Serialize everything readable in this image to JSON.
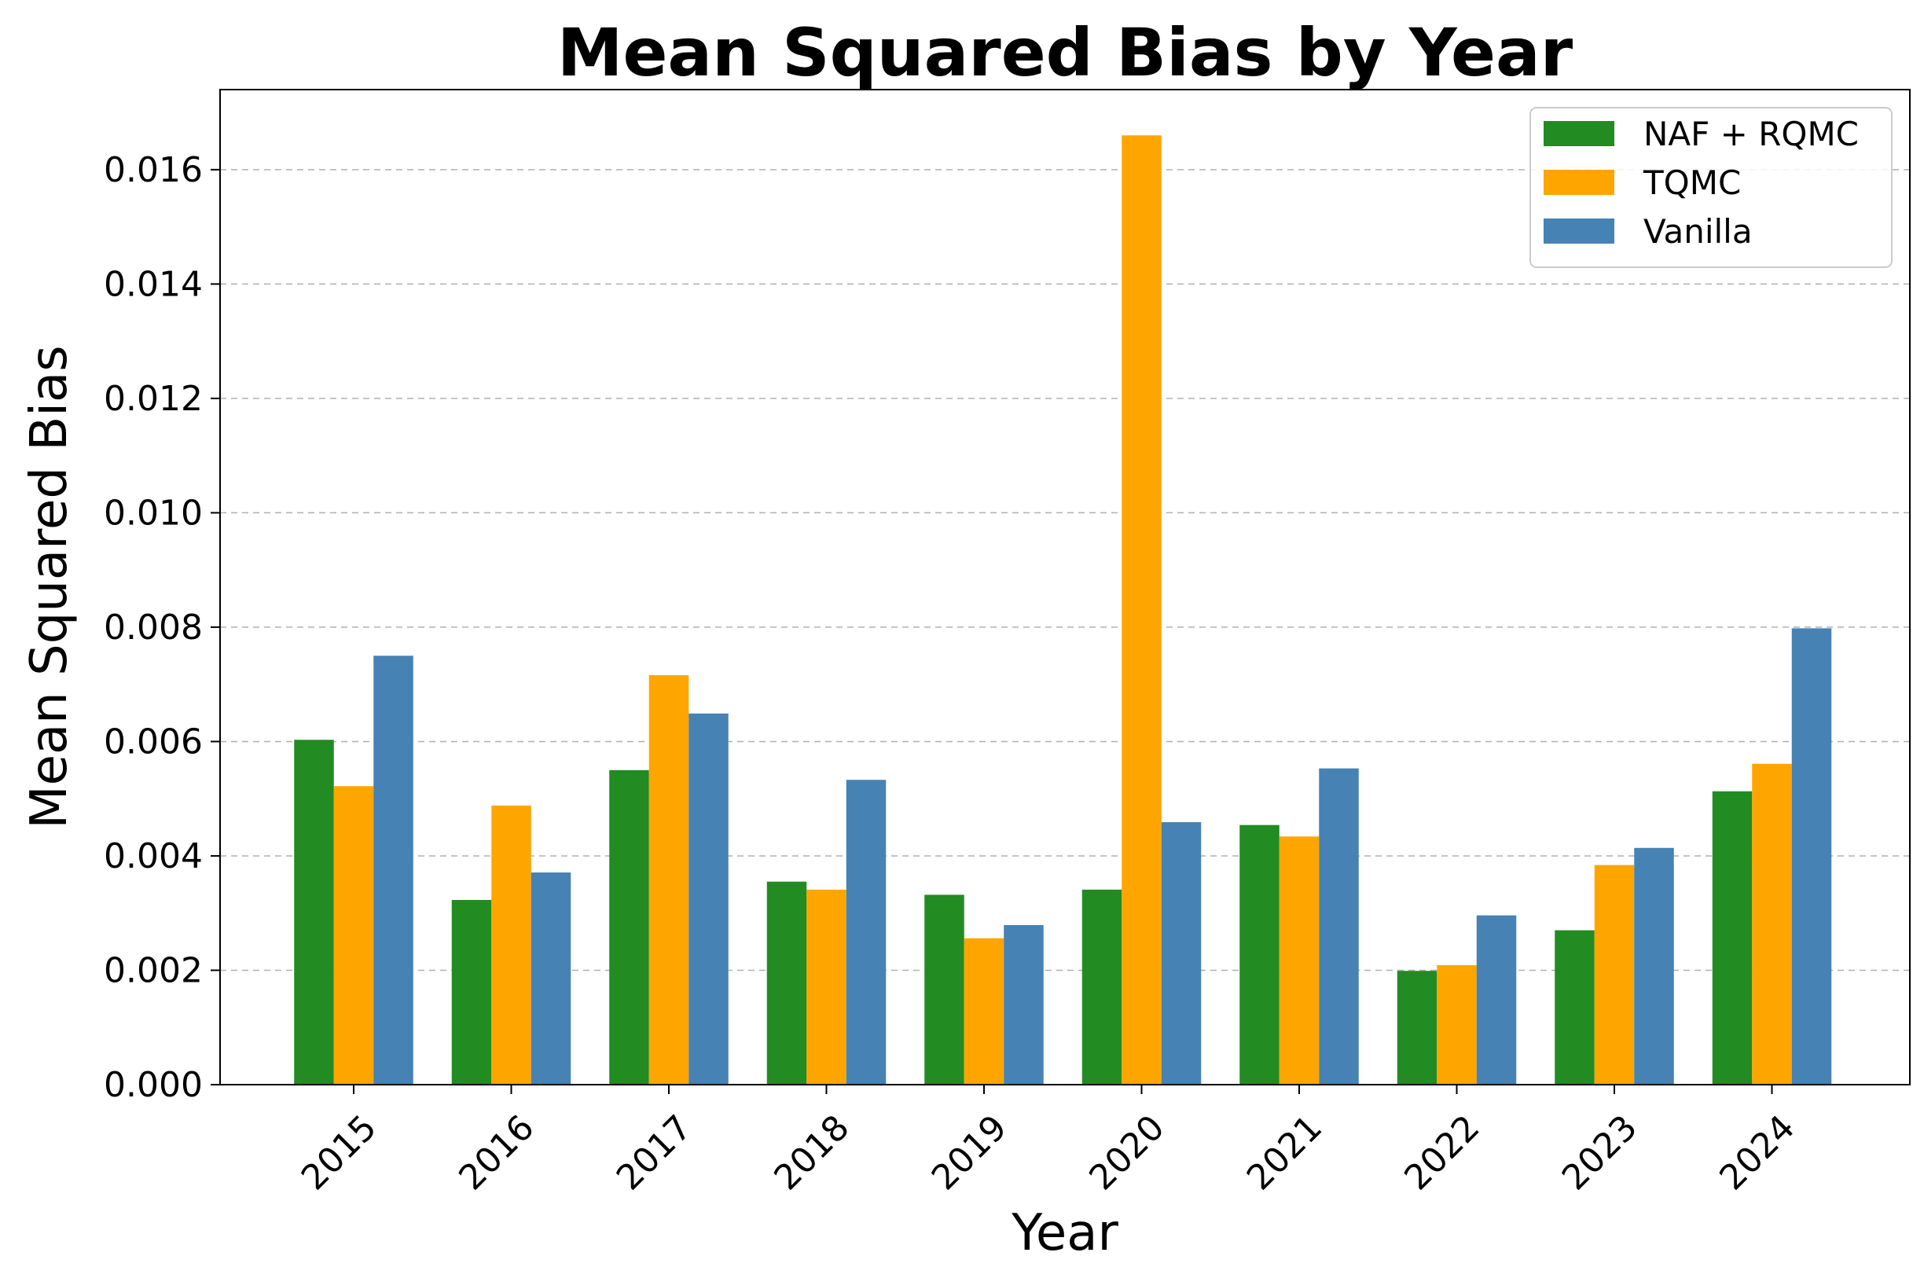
{
  "chart_data": {
    "type": "bar",
    "title": "Mean Squared Bias by Year",
    "xlabel": "Year",
    "ylabel": "Mean Squared Bias",
    "categories": [
      "2015",
      "2016",
      "2017",
      "2018",
      "2019",
      "2020",
      "2021",
      "2022",
      "2023",
      "2024"
    ],
    "series": [
      {
        "name": "NAF + RQMC",
        "color": "#228B22",
        "values": [
          0.00603,
          0.00323,
          0.0055,
          0.00355,
          0.00332,
          0.00341,
          0.00454,
          0.00199,
          0.0027,
          0.00513
        ]
      },
      {
        "name": "TQMC",
        "color": "#FFA500",
        "values": [
          0.00522,
          0.00488,
          0.00716,
          0.00341,
          0.00256,
          0.0166,
          0.00434,
          0.00209,
          0.00384,
          0.00561
        ]
      },
      {
        "name": "Vanilla",
        "color": "#4682B4",
        "values": [
          0.0075,
          0.00371,
          0.00649,
          0.00533,
          0.00279,
          0.00459,
          0.00553,
          0.00296,
          0.00414,
          0.00798
        ]
      }
    ],
    "ylim": [
      0,
      0.0174
    ],
    "yticks": [
      "0.000",
      "0.002",
      "0.004",
      "0.006",
      "0.008",
      "0.010",
      "0.012",
      "0.014",
      "0.016"
    ],
    "grid": "y-dashed",
    "legend_position": "top-right"
  }
}
